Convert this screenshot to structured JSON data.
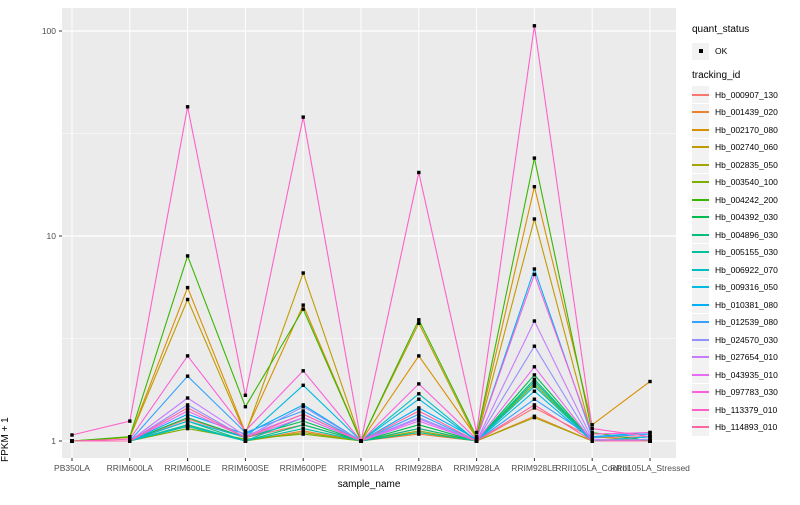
{
  "figure": {
    "background": "#FFFFFF",
    "panel_background": "#EBEBEB",
    "grid_color": "#FFFFFF",
    "point_color": "#000000",
    "tick_label_color": "#4D4D4D",
    "legend_key_background": "#F2F2F2"
  },
  "legend": {
    "quant_status_title": "quant_status",
    "ok_label": "OK",
    "tracking_id_title": "tracking_id"
  },
  "chart_data": {
    "type": "line",
    "title": "",
    "xlabel": "sample_name",
    "ylabel": "FPKM + 1",
    "y_scale": "log10",
    "ylim": [
      1,
      110
    ],
    "y_major_ticks": [
      1,
      10,
      100
    ],
    "y_minor_ticks": [
      3.162,
      31.623
    ],
    "grid": true,
    "legend_position": "right",
    "point_shape": "filled-square",
    "quant_status_values": [
      "OK"
    ],
    "categories": [
      "PB350LA",
      "RRIM600LA",
      "RRIM600LE",
      "RRIM600SE",
      "RRIM600PE",
      "RRIM901LA",
      "RRIM928BA",
      "RRIM928LA",
      "RRIM928LE",
      "RRII105LA_Control",
      "RRII105LA_Stressed"
    ],
    "series": [
      {
        "name": "Hb_000907_130",
        "color": "#F8766D",
        "quant_status": "OK",
        "values": [
          1.0,
          1.0,
          1.28,
          1.04,
          1.2,
          1.0,
          1.15,
          1.0,
          1.45,
          1.04,
          1.05
        ]
      },
      {
        "name": "Hb_001439_020",
        "color": "#EA8331",
        "quant_status": "OK",
        "values": [
          1.0,
          1.0,
          1.2,
          1.0,
          1.12,
          1.0,
          1.08,
          1.0,
          1.32,
          1.0,
          1.0
        ]
      },
      {
        "name": "Hb_002170_080",
        "color": "#D89000",
        "quant_status": "OK",
        "values": [
          1.0,
          1.04,
          5.6,
          1.1,
          4.6,
          1.0,
          2.6,
          1.04,
          17.4,
          1.2,
          1.95
        ]
      },
      {
        "name": "Hb_002740_060",
        "color": "#C09B00",
        "quant_status": "OK",
        "values": [
          1.0,
          1.04,
          4.9,
          1.08,
          6.6,
          1.0,
          3.75,
          1.02,
          12.1,
          1.05,
          1.0
        ]
      },
      {
        "name": "Hb_002835_050",
        "color": "#A3A500",
        "quant_status": "OK",
        "values": [
          1.0,
          1.0,
          1.18,
          1.0,
          1.1,
          1.0,
          1.12,
          1.0,
          1.3,
          1.0,
          1.0
        ]
      },
      {
        "name": "Hb_003540_100",
        "color": "#7CAE00",
        "quant_status": "OK",
        "values": [
          1.0,
          1.0,
          1.15,
          1.02,
          1.08,
          1.0,
          1.1,
          1.0,
          1.9,
          1.0,
          1.0
        ]
      },
      {
        "name": "Hb_004242_200",
        "color": "#39B600",
        "quant_status": "OK",
        "values": [
          1.0,
          1.05,
          8.0,
          1.47,
          4.4,
          1.0,
          3.9,
          1.05,
          24.0,
          1.1,
          1.0
        ]
      },
      {
        "name": "Hb_004392_030",
        "color": "#00BB4E",
        "quant_status": "OK",
        "values": [
          1.0,
          1.0,
          1.3,
          1.04,
          1.25,
          1.0,
          1.2,
          1.0,
          2.1,
          1.0,
          1.0
        ]
      },
      {
        "name": "Hb_004896_030",
        "color": "#00C079",
        "quant_status": "OK",
        "values": [
          1.0,
          1.0,
          1.25,
          1.0,
          1.2,
          1.0,
          1.15,
          1.0,
          2.0,
          1.0,
          1.0
        ]
      },
      {
        "name": "Hb_005155_030",
        "color": "#00C19F",
        "quant_status": "OK",
        "values": [
          1.0,
          1.0,
          1.2,
          1.0,
          1.15,
          1.0,
          1.1,
          1.0,
          1.95,
          1.0,
          1.0
        ]
      },
      {
        "name": "Hb_006922_070",
        "color": "#00BFC4",
        "quant_status": "OK",
        "values": [
          1.0,
          1.0,
          1.18,
          1.0,
          1.3,
          1.0,
          1.7,
          1.0,
          1.85,
          1.0,
          1.05
        ]
      },
      {
        "name": "Hb_009316_050",
        "color": "#00BAE0",
        "quant_status": "OK",
        "values": [
          1.0,
          1.0,
          1.25,
          1.04,
          1.87,
          1.0,
          1.6,
          1.0,
          1.75,
          1.0,
          1.05
        ]
      },
      {
        "name": "Hb_010381_080",
        "color": "#00B0F6",
        "quant_status": "OK",
        "values": [
          1.0,
          1.0,
          1.35,
          1.08,
          1.5,
          1.0,
          1.45,
          1.02,
          6.9,
          1.05,
          1.1
        ]
      },
      {
        "name": "Hb_012539_080",
        "color": "#35A2FF",
        "quant_status": "OK",
        "values": [
          1.0,
          1.0,
          2.07,
          1.1,
          1.4,
          1.0,
          1.35,
          1.0,
          1.6,
          1.04,
          1.08
        ]
      },
      {
        "name": "Hb_024570_030",
        "color": "#9590FF",
        "quant_status": "OK",
        "values": [
          1.0,
          1.0,
          1.5,
          1.04,
          1.47,
          1.0,
          1.3,
          1.0,
          2.9,
          1.0,
          1.02
        ]
      },
      {
        "name": "Hb_027654_010",
        "color": "#C77CFF",
        "quant_status": "OK",
        "values": [
          1.0,
          1.0,
          1.62,
          1.06,
          1.35,
          1.0,
          1.28,
          1.0,
          3.85,
          1.02,
          1.0
        ]
      },
      {
        "name": "Hb_043935_010",
        "color": "#E76BF3",
        "quant_status": "OK",
        "values": [
          1.0,
          1.0,
          1.4,
          1.04,
          1.3,
          1.0,
          1.25,
          1.0,
          2.3,
          1.0,
          1.0
        ]
      },
      {
        "name": "Hb_097783_030",
        "color": "#FA62DB",
        "quant_status": "OK",
        "values": [
          1.0,
          1.02,
          2.6,
          1.12,
          2.2,
          1.0,
          1.9,
          1.02,
          6.5,
          1.08,
          1.1
        ]
      },
      {
        "name": "Hb_113379_010",
        "color": "#FF61C9",
        "quant_status": "OK",
        "values": [
          1.07,
          1.25,
          42.7,
          1.67,
          38.0,
          1.0,
          20.4,
          1.1,
          106.0,
          1.15,
          1.05
        ]
      },
      {
        "name": "Hb_114893_010",
        "color": "#FF67A4",
        "quant_status": "OK",
        "values": [
          1.0,
          1.0,
          1.45,
          1.04,
          1.35,
          1.0,
          1.4,
          1.0,
          1.5,
          1.0,
          1.0
        ]
      }
    ]
  }
}
